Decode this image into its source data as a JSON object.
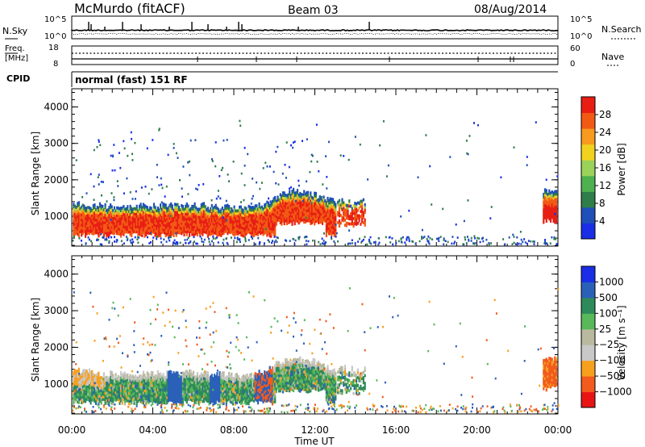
{
  "header": {
    "station": "McMurdo (fitACF)",
    "beam": "Beam 03",
    "date": "08/Aug/2014"
  },
  "top_panels": {
    "nsky_label": "N.Sky",
    "nsky_hi": "10^5",
    "nsky_lo": "10^0",
    "nsearch_label": "N.Search",
    "nsearch_hi": "10^5",
    "nsearch_lo": "10^0",
    "freq_label_1": "Freq.",
    "freq_label_2": "[MHz]",
    "freq_hi": "18",
    "freq_lo": "8",
    "nave_label": "Nave",
    "nave_hi": "60",
    "nave_lo": "0",
    "cpid_label": "CPID",
    "cpid_text": "normal (fast) 151 RF"
  },
  "colors": {
    "power": [
      "#1a2ee6",
      "#1f4fb8",
      "#2e7d4a",
      "#4fb04f",
      "#9bd25a",
      "#f0d21e",
      "#f79a1e",
      "#f25a14",
      "#e81e14"
    ],
    "velocity": [
      "#e81414",
      "#f25a1e",
      "#f7a01e",
      "#c8c8c8",
      "#b9b9a0",
      "#58b85a",
      "#2e8a5a",
      "#2b60b8",
      "#1a2ee6"
    ]
  },
  "chart_data": [
    {
      "type": "heatmap",
      "name": "power",
      "ylabel": "Slant Range [km]",
      "xlabel": "",
      "x_ticks": [
        "00:00",
        "04:00",
        "08:00",
        "12:00",
        "16:00",
        "20:00",
        "00:00"
      ],
      "y_ticks": [
        "1000",
        "2000",
        "3000",
        "4000"
      ],
      "xlim": [
        0,
        24
      ],
      "ylim": [
        180,
        4500
      ],
      "colorbar_label": "Power [dB]",
      "colorbar_ticks": [
        "4",
        "8",
        "12",
        "16",
        "20",
        "24",
        "28"
      ],
      "main_band": [
        [
          0.0,
          1000
        ],
        [
          0.5,
          950
        ],
        [
          1.0,
          920
        ],
        [
          1.5,
          900
        ],
        [
          2.0,
          880
        ],
        [
          2.5,
          870
        ],
        [
          3.0,
          870
        ],
        [
          3.5,
          880
        ],
        [
          4.0,
          900
        ],
        [
          4.5,
          920
        ],
        [
          5.0,
          930
        ],
        [
          5.5,
          930
        ],
        [
          6.0,
          920
        ],
        [
          6.5,
          900
        ],
        [
          7.0,
          880
        ],
        [
          7.5,
          870
        ],
        [
          8.0,
          860
        ],
        [
          8.5,
          850
        ],
        [
          9.0,
          880
        ],
        [
          9.5,
          960
        ],
        [
          10.0,
          1150
        ],
        [
          10.5,
          1250
        ],
        [
          11.0,
          1300
        ],
        [
          11.5,
          1270
        ],
        [
          12.0,
          1200
        ],
        [
          12.5,
          1100
        ],
        [
          13.0,
          1000
        ]
      ]
    },
    {
      "type": "heatmap",
      "name": "velocity",
      "ylabel": "Slant Range [km]",
      "xlabel": "Time UT",
      "x_ticks": [
        "00:00",
        "04:00",
        "08:00",
        "12:00",
        "16:00",
        "20:00",
        "00:00"
      ],
      "y_ticks": [
        "1000",
        "2000",
        "3000",
        "4000"
      ],
      "xlim": [
        0,
        24
      ],
      "ylim": [
        180,
        4500
      ],
      "colorbar_label": "Velocity [m s⁻¹]",
      "colorbar_ticks": [
        "1000",
        "500",
        "100",
        "25",
        "−25",
        "−100",
        "−500",
        "−1000"
      ]
    }
  ]
}
